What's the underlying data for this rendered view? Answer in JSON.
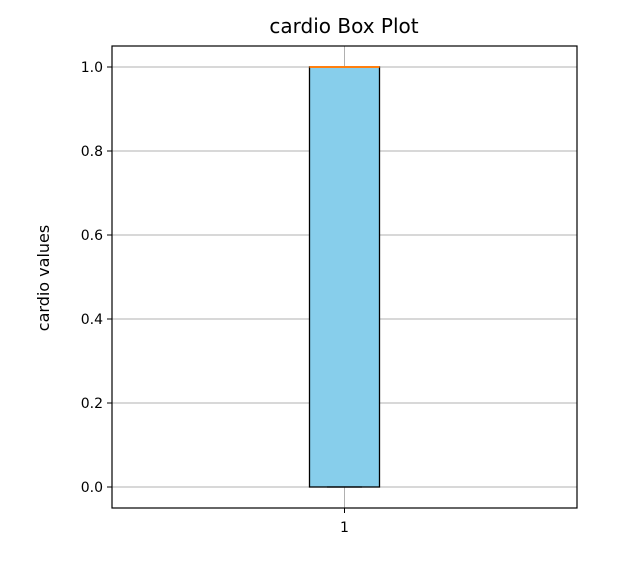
{
  "colors": {
    "box_fill": "#87ceeb",
    "box_edge": "#000000",
    "median": "#ff7f0e",
    "grid": "#b0b0b0"
  },
  "chart_data": {
    "type": "box",
    "title": "cardio Box Plot",
    "xlabel": "",
    "ylabel": "cardio values",
    "ylim": [
      -0.05,
      1.05
    ],
    "yticks": [
      0.0,
      0.2,
      0.4,
      0.6,
      0.8,
      1.0
    ],
    "ytick_labels": [
      "0.0",
      "0.2",
      "0.4",
      "0.6",
      "0.8",
      "1.0"
    ],
    "categories": [
      "1"
    ],
    "grid": true,
    "boxes": [
      {
        "label": "1",
        "whisker_low": 0.0,
        "q1": 0.0,
        "median": 1.0,
        "q3": 1.0,
        "whisker_high": 1.0
      }
    ]
  }
}
